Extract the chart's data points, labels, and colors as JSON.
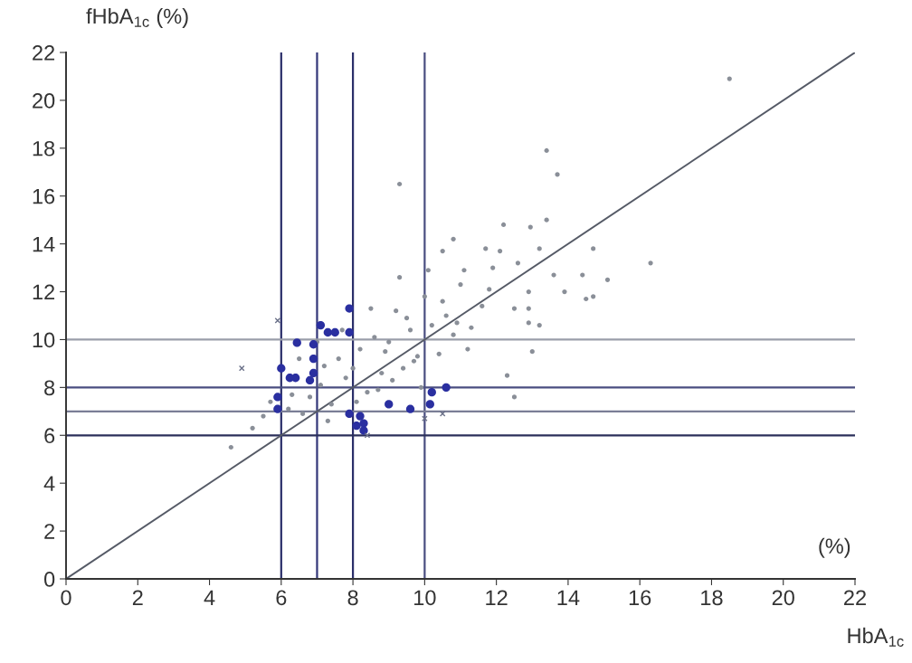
{
  "chart_data": {
    "type": "scatter",
    "xlabel": "HbA$_{1c}$",
    "ylabel": "fHbA$_{1c}$ (%)",
    "annotations": [
      "(%)"
    ],
    "xlim": [
      0,
      22
    ],
    "ylim": [
      0,
      22
    ],
    "xticks": [
      0,
      2,
      4,
      6,
      8,
      10,
      12,
      14,
      16,
      18,
      20,
      22
    ],
    "yticks": [
      0,
      2,
      4,
      6,
      8,
      10,
      12,
      14,
      16,
      18,
      20,
      22
    ],
    "grid": false,
    "legend": false,
    "series": [
      {
        "marker": "circle",
        "color": "#8a8f98",
        "x": [
          18.5,
          13.4,
          13.7,
          9.3,
          12.2,
          12.95,
          13.4,
          10.8,
          14.7,
          15.1,
          14.5,
          14.7,
          13.9,
          13.6,
          14.4,
          13.2,
          12.1,
          11.7,
          12.6,
          11.9,
          12.9,
          13.2,
          12.9,
          12.9,
          12.5,
          11.1,
          10.5,
          13.0,
          16.3,
          12.5,
          12.3,
          4.6,
          5.2,
          5.5,
          5.7,
          6.3,
          6.6,
          6.8,
          7.2,
          7.4,
          7.6,
          7.8,
          8.2,
          8.4,
          8.6,
          8.8,
          9.0,
          9.2,
          9.4,
          9.6,
          9.8,
          10.0,
          10.2,
          10.4,
          10.6,
          10.8,
          11.0,
          11.3,
          11.6,
          7.1,
          7.7,
          8.1,
          8.5,
          8.9,
          9.3,
          9.7,
          10.1,
          10.5,
          10.9,
          6.5,
          7.3,
          8.0,
          8.7,
          9.5,
          6.2,
          7.0,
          9.1,
          9.9,
          11.2,
          11.8
        ],
        "values": [
          20.9,
          17.9,
          16.9,
          16.5,
          14.8,
          14.7,
          15.0,
          14.2,
          13.8,
          12.5,
          11.7,
          11.8,
          12.0,
          12.7,
          12.7,
          13.8,
          13.7,
          13.8,
          13.2,
          13.0,
          12.0,
          10.6,
          10.7,
          11.3,
          11.3,
          12.9,
          13.7,
          9.5,
          13.2,
          7.6,
          8.5,
          5.5,
          6.3,
          6.8,
          7.4,
          7.7,
          6.9,
          7.6,
          8.9,
          7.3,
          9.2,
          8.4,
          9.6,
          7.8,
          10.1,
          8.6,
          9.9,
          11.2,
          8.8,
          10.4,
          9.3,
          11.8,
          10.6,
          9.4,
          11.0,
          10.2,
          12.3,
          10.5,
          11.4,
          8.1,
          10.4,
          7.4,
          11.3,
          9.5,
          12.6,
          9.1,
          12.9,
          11.6,
          10.7,
          9.2,
          6.6,
          8.8,
          7.9,
          10.9,
          7.1,
          9.9,
          8.3,
          8.0,
          9.6,
          12.1
        ]
      },
      {
        "marker": "circle",
        "color": "#2a2fa0",
        "x": [
          6.44,
          7.3,
          7.1,
          7.5,
          6.9,
          6.9,
          6.9,
          6.4,
          6.24,
          6.0,
          5.9,
          5.9,
          6.8,
          8.2,
          8.1,
          8.3,
          8.3,
          7.9,
          10.2,
          10.6,
          10.15,
          9.6,
          9.0,
          7.9,
          7.9
        ],
        "values": [
          9.87,
          10.3,
          10.6,
          10.3,
          9.8,
          9.2,
          8.6,
          8.4,
          8.4,
          8.8,
          7.6,
          7.1,
          8.3,
          6.8,
          6.4,
          6.5,
          6.2,
          6.9,
          7.8,
          8.0,
          7.3,
          7.1,
          7.3,
          10.3,
          11.3
        ]
      },
      {
        "marker": "cross",
        "color": "#6a7088",
        "x": [
          4.9,
          5.9,
          10.0,
          10.5,
          8.4
        ],
        "values": [
          8.8,
          10.8,
          6.7,
          6.9,
          6.0
        ]
      },
      {
        "type": "line",
        "marker": "none",
        "line_style": "solid",
        "color": "#555a66",
        "x": [
          0,
          22
        ],
        "values": [
          0,
          22
        ]
      }
    ],
    "ref_lines": [
      {
        "axis": "x",
        "value": 6,
        "color": "#2b2f6a"
      },
      {
        "axis": "x",
        "value": 7,
        "color": "#34387a"
      },
      {
        "axis": "x",
        "value": 8,
        "color": "#2b2f6a"
      },
      {
        "axis": "x",
        "value": 10,
        "color": "#4a4e80"
      },
      {
        "axis": "y",
        "value": 6,
        "color": "#2b2f5a"
      },
      {
        "axis": "y",
        "value": 7,
        "color": "#7a7e96"
      },
      {
        "axis": "y",
        "value": 8,
        "color": "#4a4e80"
      },
      {
        "axis": "y",
        "value": 10,
        "color": "#9a9eaa"
      }
    ]
  }
}
